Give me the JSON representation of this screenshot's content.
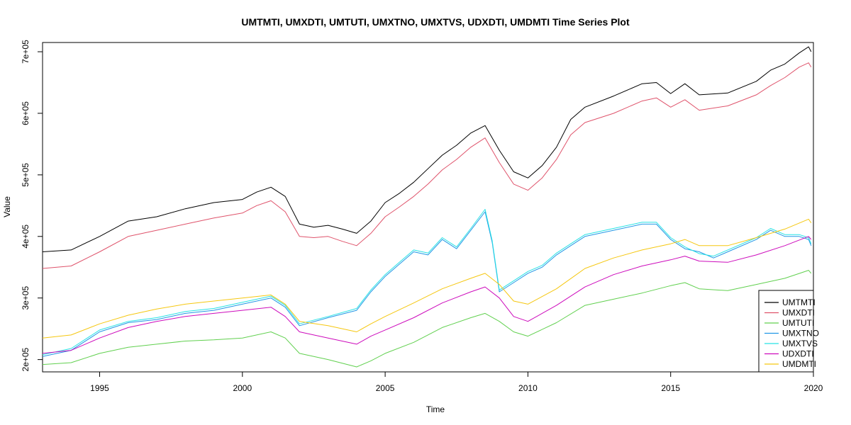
{
  "chart_data": {
    "type": "line",
    "title": "UMTMTI, UMXDTI, UMTUTI, UMXTNO, UMXTVS, UDXDTI, UMDMTI Time Series Plot",
    "xlabel": "Time",
    "ylabel": "Value",
    "xlim": [
      1993,
      2020
    ],
    "ylim": [
      180000,
      715000
    ],
    "x_ticks": [
      1995,
      2000,
      2005,
      2010,
      2015,
      2020
    ],
    "x_tick_labels": [
      "1995",
      "2000",
      "2005",
      "2010",
      "2015",
      "2020"
    ],
    "y_ticks": [
      200000,
      300000,
      400000,
      500000,
      600000,
      700000
    ],
    "y_tick_labels": [
      "2e+05",
      "3e+05",
      "4e+05",
      "5e+05",
      "6e+05",
      "7e+05"
    ],
    "legend_position": "bottom-right",
    "grid": false,
    "series": [
      {
        "name": "UMTMTI",
        "color": "#000000",
        "x": [
          1993.0,
          1994.0,
          1995.0,
          1996.0,
          1997.0,
          1998.0,
          1999.0,
          2000.0,
          2000.5,
          2001.0,
          2001.5,
          2002.0,
          2002.5,
          2003.0,
          2003.5,
          2004.0,
          2004.5,
          2005.0,
          2005.5,
          2006.0,
          2006.5,
          2007.0,
          2007.5,
          2008.0,
          2008.5,
          2009.0,
          2009.5,
          2010.0,
          2010.5,
          2011.0,
          2011.5,
          2012.0,
          2013.0,
          2014.0,
          2014.5,
          2015.0,
          2015.5,
          2016.0,
          2017.0,
          2018.0,
          2018.5,
          2019.0,
          2019.5,
          2019.83,
          2019.92
        ],
        "values": [
          375000,
          378000,
          400000,
          425000,
          432000,
          445000,
          455000,
          460000,
          472000,
          480000,
          465000,
          420000,
          415000,
          418000,
          412000,
          405000,
          425000,
          455000,
          470000,
          488000,
          510000,
          532000,
          548000,
          568000,
          580000,
          540000,
          505000,
          495000,
          515000,
          545000,
          590000,
          610000,
          628000,
          648000,
          650000,
          632000,
          648000,
          630000,
          633000,
          652000,
          670000,
          680000,
          698000,
          708000,
          700000
        ]
      },
      {
        "name": "UMXDTI",
        "color": "#DF536B",
        "x": [
          1993.0,
          1994.0,
          1995.0,
          1996.0,
          1997.0,
          1998.0,
          1999.0,
          2000.0,
          2000.5,
          2001.0,
          2001.5,
          2002.0,
          2002.5,
          2003.0,
          2003.5,
          2004.0,
          2004.5,
          2005.0,
          2005.5,
          2006.0,
          2006.5,
          2007.0,
          2007.5,
          2008.0,
          2008.5,
          2009.0,
          2009.5,
          2010.0,
          2010.5,
          2011.0,
          2011.5,
          2012.0,
          2013.0,
          2014.0,
          2014.5,
          2015.0,
          2015.5,
          2016.0,
          2017.0,
          2018.0,
          2018.5,
          2019.0,
          2019.5,
          2019.83,
          2019.92
        ],
        "values": [
          348000,
          352000,
          375000,
          400000,
          410000,
          420000,
          430000,
          438000,
          450000,
          458000,
          440000,
          400000,
          398000,
          400000,
          392000,
          385000,
          405000,
          432000,
          448000,
          465000,
          485000,
          508000,
          525000,
          545000,
          560000,
          520000,
          485000,
          475000,
          495000,
          525000,
          565000,
          585000,
          600000,
          620000,
          625000,
          610000,
          622000,
          605000,
          612000,
          630000,
          645000,
          658000,
          675000,
          682000,
          675000
        ]
      },
      {
        "name": "UMTUTI",
        "color": "#61D04F",
        "x": [
          1993.0,
          1994.0,
          1995.0,
          1996.0,
          1997.0,
          1998.0,
          1999.0,
          2000.0,
          2001.0,
          2001.5,
          2002.0,
          2003.0,
          2004.0,
          2004.5,
          2005.0,
          2006.0,
          2007.0,
          2008.0,
          2008.5,
          2009.0,
          2009.5,
          2010.0,
          2011.0,
          2012.0,
          2013.0,
          2014.0,
          2015.0,
          2015.5,
          2016.0,
          2017.0,
          2018.0,
          2019.0,
          2019.83,
          2019.92
        ],
        "values": [
          192000,
          195000,
          210000,
          220000,
          225000,
          230000,
          232000,
          235000,
          245000,
          235000,
          210000,
          200000,
          188000,
          198000,
          210000,
          228000,
          252000,
          268000,
          275000,
          262000,
          245000,
          238000,
          260000,
          288000,
          298000,
          308000,
          320000,
          325000,
          315000,
          312000,
          322000,
          332000,
          345000,
          340000
        ]
      },
      {
        "name": "UMXTNO",
        "color": "#2297E6",
        "x": [
          1993.0,
          1994.0,
          1995.0,
          1996.0,
          1997.0,
          1998.0,
          1999.0,
          2000.0,
          2001.0,
          2001.5,
          2002.0,
          2003.0,
          2004.0,
          2004.5,
          2005.0,
          2005.5,
          2006.0,
          2006.5,
          2007.0,
          2007.5,
          2008.0,
          2008.5,
          2008.75,
          2009.0,
          2009.5,
          2010.0,
          2010.5,
          2011.0,
          2011.5,
          2012.0,
          2013.0,
          2014.0,
          2014.5,
          2015.0,
          2015.5,
          2016.0,
          2016.5,
          2017.0,
          2018.0,
          2018.5,
          2019.0,
          2019.5,
          2019.83,
          2019.92
        ],
        "values": [
          205000,
          215000,
          245000,
          260000,
          265000,
          275000,
          280000,
          290000,
          300000,
          285000,
          255000,
          268000,
          280000,
          310000,
          335000,
          355000,
          375000,
          370000,
          395000,
          380000,
          410000,
          440000,
          390000,
          310000,
          325000,
          340000,
          350000,
          370000,
          385000,
          400000,
          410000,
          420000,
          420000,
          395000,
          380000,
          375000,
          365000,
          375000,
          395000,
          410000,
          400000,
          400000,
          395000,
          385000
        ]
      },
      {
        "name": "UMXTVS",
        "color": "#28E2E5",
        "x": [
          1993.0,
          1994.0,
          1995.0,
          1996.0,
          1997.0,
          1998.0,
          1999.0,
          2000.0,
          2001.0,
          2001.5,
          2002.0,
          2003.0,
          2004.0,
          2004.5,
          2005.0,
          2005.5,
          2006.0,
          2006.5,
          2007.0,
          2007.5,
          2008.0,
          2008.5,
          2008.75,
          2009.0,
          2009.5,
          2010.0,
          2010.5,
          2011.0,
          2011.5,
          2012.0,
          2013.0,
          2014.0,
          2014.5,
          2015.0,
          2015.5,
          2016.0,
          2016.5,
          2017.0,
          2018.0,
          2018.5,
          2019.0,
          2019.5,
          2019.83,
          2019.92
        ],
        "values": [
          208000,
          218000,
          248000,
          262000,
          268000,
          278000,
          283000,
          293000,
          303000,
          288000,
          258000,
          270000,
          283000,
          313000,
          338000,
          358000,
          378000,
          373000,
          398000,
          383000,
          413000,
          444000,
          393000,
          313000,
          328000,
          343000,
          353000,
          373000,
          388000,
          403000,
          413000,
          423000,
          423000,
          398000,
          383000,
          372000,
          368000,
          378000,
          398000,
          413000,
          403000,
          403000,
          398000,
          388000
        ]
      },
      {
        "name": "UDXDTI",
        "color": "#CD0BBC",
        "x": [
          1993.0,
          1994.0,
          1995.0,
          1996.0,
          1997.0,
          1998.0,
          1999.0,
          2000.0,
          2001.0,
          2001.5,
          2002.0,
          2003.0,
          2004.0,
          2004.5,
          2005.0,
          2006.0,
          2007.0,
          2008.0,
          2008.5,
          2009.0,
          2009.5,
          2010.0,
          2011.0,
          2012.0,
          2013.0,
          2014.0,
          2015.0,
          2015.5,
          2016.0,
          2017.0,
          2018.0,
          2019.0,
          2019.83,
          2019.92
        ],
        "values": [
          210000,
          215000,
          235000,
          252000,
          262000,
          270000,
          275000,
          280000,
          285000,
          270000,
          245000,
          235000,
          225000,
          238000,
          248000,
          268000,
          292000,
          310000,
          318000,
          300000,
          270000,
          262000,
          288000,
          318000,
          338000,
          352000,
          362000,
          368000,
          360000,
          358000,
          370000,
          385000,
          400000,
          395000
        ]
      },
      {
        "name": "UMDMTI",
        "color": "#F5C710",
        "x": [
          1993.0,
          1994.0,
          1995.0,
          1996.0,
          1997.0,
          1998.0,
          1999.0,
          2000.0,
          2001.0,
          2001.5,
          2002.0,
          2003.0,
          2004.0,
          2004.5,
          2005.0,
          2006.0,
          2007.0,
          2008.0,
          2008.5,
          2009.0,
          2009.5,
          2010.0,
          2011.0,
          2012.0,
          2013.0,
          2014.0,
          2015.0,
          2015.5,
          2016.0,
          2017.0,
          2018.0,
          2019.0,
          2019.83,
          2019.92
        ],
        "values": [
          235000,
          240000,
          258000,
          272000,
          282000,
          290000,
          295000,
          300000,
          305000,
          290000,
          262000,
          255000,
          245000,
          258000,
          270000,
          292000,
          315000,
          332000,
          340000,
          322000,
          295000,
          290000,
          315000,
          348000,
          365000,
          378000,
          388000,
          395000,
          385000,
          385000,
          398000,
          412000,
          428000,
          422000
        ]
      }
    ]
  }
}
